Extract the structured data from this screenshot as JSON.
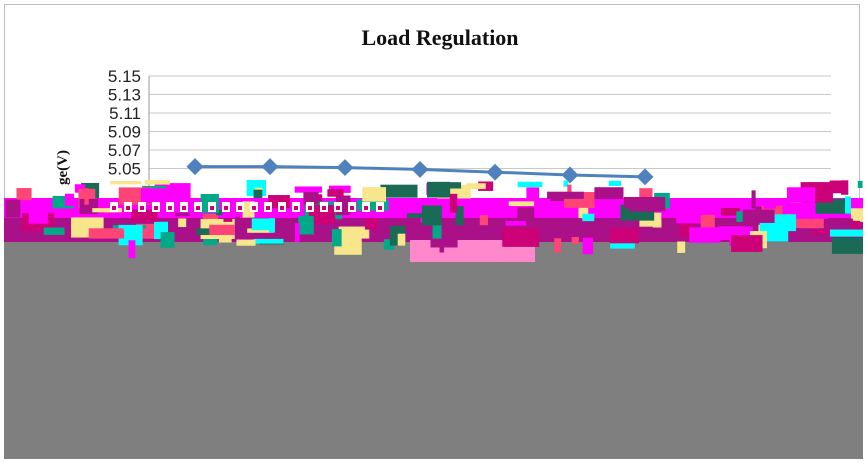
{
  "chart_data": {
    "type": "line",
    "title": "Load Regulation",
    "ylabel": "ge(V)",
    "ylim": [
      5.03,
      5.15
    ],
    "yticks": [
      "5.15",
      "5.13",
      "5.11",
      "5.09",
      "5.07",
      "5.05"
    ],
    "grid": true,
    "series": [
      {
        "color": "#4f81bd",
        "values": [
          5.052,
          5.052,
          5.051,
          5.049,
          5.046,
          5.043,
          5.041
        ]
      }
    ]
  },
  "corruption": {
    "colors": [
      "#ff00ff",
      "#cc0077",
      "#00ffff",
      "#f7e68c",
      "#00aa88",
      "#1a6a55",
      "#ff4477",
      "#aa1188"
    ],
    "fill_color": "#7f7f7f"
  }
}
